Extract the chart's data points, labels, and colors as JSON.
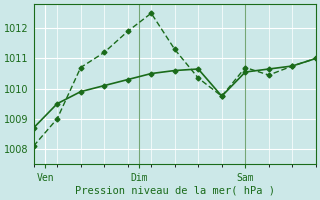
{
  "background_color": "#cce8e8",
  "grid_color": "#ffffff",
  "line_color": "#1a6b1a",
  "xlabel": "Pression niveau de la mer( hPa )",
  "xlabel_color": "#1a6b1a",
  "tick_color": "#1a6b1a",
  "ylim": [
    1007.5,
    1012.8
  ],
  "yticks": [
    1008,
    1009,
    1010,
    1011,
    1012
  ],
  "line1_x": [
    0,
    1,
    2,
    3,
    4,
    5,
    6,
    7,
    8,
    9,
    10,
    11,
    12
  ],
  "line1_y": [
    1008.1,
    1009.0,
    1010.7,
    1011.2,
    1011.9,
    1012.5,
    1011.3,
    1010.35,
    1009.75,
    1010.7,
    1010.45,
    1010.75,
    1011.0
  ],
  "line2_x": [
    0,
    1,
    2,
    3,
    4,
    5,
    6,
    7,
    8,
    9,
    10,
    11,
    12
  ],
  "line2_y": [
    1008.7,
    1009.5,
    1009.9,
    1010.1,
    1010.3,
    1010.5,
    1010.6,
    1010.65,
    1009.75,
    1010.55,
    1010.65,
    1010.75,
    1011.0
  ],
  "vline_positions": [
    4.5,
    9.0
  ],
  "xtick_positions": [
    0.5,
    4.5,
    9.0
  ],
  "xtick_labels": [
    "Ven",
    "Dim",
    "Sam"
  ],
  "xmin": 0,
  "xmax": 12
}
